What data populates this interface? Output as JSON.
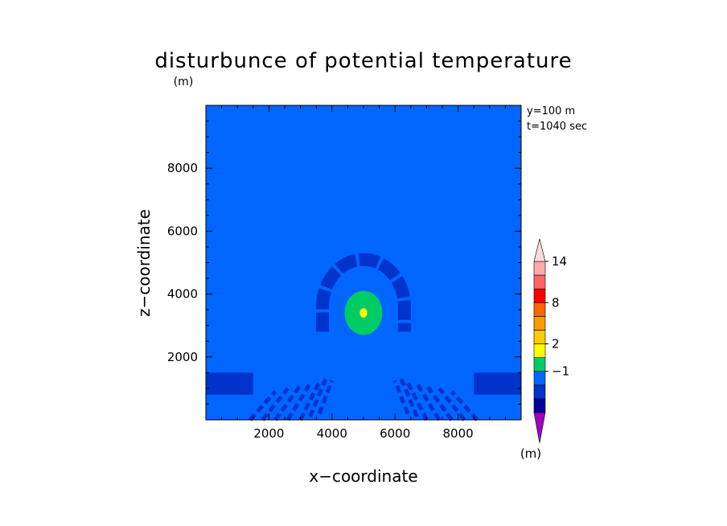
{
  "chart_data": {
    "type": "heatmap",
    "title": "disturbunce of potential temperature",
    "xlabel": "x−coordinate",
    "ylabel": "z−coordinate",
    "y_unit": "(m)",
    "xlim": [
      0,
      10000
    ],
    "ylim": [
      0,
      10000
    ],
    "x_ticks": [
      {
        "value": 2000,
        "label": "2000"
      },
      {
        "value": 4000,
        "label": "4000"
      },
      {
        "value": 6000,
        "label": "6000"
      },
      {
        "value": 8000,
        "label": "8000"
      }
    ],
    "y_ticks": [
      {
        "value": 2000,
        "label": "2000"
      },
      {
        "value": 4000,
        "label": "4000"
      },
      {
        "value": 6000,
        "label": "6000"
      },
      {
        "value": 8000,
        "label": "8000"
      }
    ],
    "annotations": [
      "y=100 m",
      "t=1040 sec"
    ],
    "background_value": 0,
    "regions": [
      {
        "name": "warm-bubble-outer",
        "cx": 5000,
        "cy": 3400,
        "rx": 600,
        "ry": 700,
        "level": 1
      },
      {
        "name": "warm-bubble-core",
        "cx": 5000,
        "cy": 3400,
        "rx": 120,
        "ry": 150,
        "level": 2
      },
      {
        "name": "cool-arc",
        "cx": 5000,
        "cy": 3600,
        "rx": 1300,
        "ry": 1500,
        "level": -1
      }
    ],
    "colorbar": {
      "unit": "(m)",
      "colors": [
        "#a000c0",
        "#000099",
        "#0033cc",
        "#0066ff",
        "#00cc66",
        "#ffff00",
        "#ffcc00",
        "#ff9900",
        "#ff6600",
        "#ff0000",
        "#ff6666",
        "#ffaaaa",
        "#ffdada"
      ],
      "labels": [
        {
          "label": "−1",
          "boundary": 3
        },
        {
          "label": "2",
          "boundary": 5
        },
        {
          "label": "8",
          "boundary": 8
        },
        {
          "label": "14",
          "boundary": 11
        }
      ]
    }
  }
}
